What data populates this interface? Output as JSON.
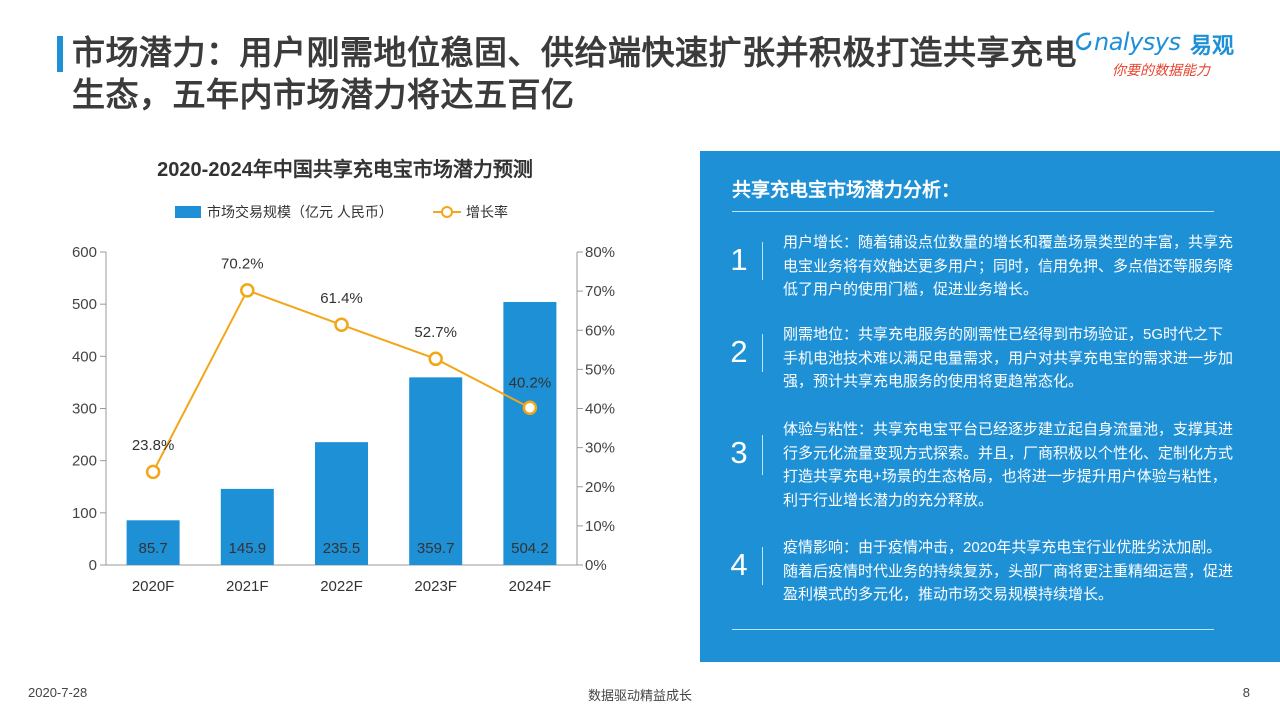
{
  "slide": {
    "title": "市场潜力：用户刚需地位稳固、供给端快速扩张并积极打造共享充电生态，五年内市场潜力将达五百亿",
    "logo_en": "nalysys",
    "logo_cn": "易观",
    "logo_slogan": "你要的数据能力",
    "footer_date": "2020-7-28",
    "footer_center": "数据驱动精益成长",
    "page_number": "8"
  },
  "colors": {
    "bar": "#1E90D6",
    "line": "#F2A618",
    "panel_bg": "#1E90D6",
    "title_accent": "#1E90D6"
  },
  "chart_data": {
    "type": "bar",
    "title": "2020-2024年中国共享充电宝市场潜力预测",
    "categories": [
      "2020F",
      "2021F",
      "2022F",
      "2023F",
      "2024F"
    ],
    "series": [
      {
        "name": "市场交易规模（亿元 人民币）",
        "type": "bar",
        "axis": "left",
        "values": [
          85.7,
          145.9,
          235.5,
          359.7,
          504.2
        ],
        "labels": [
          "85.7",
          "145.9",
          "235.5",
          "359.7",
          "504.2"
        ]
      },
      {
        "name": "增长率",
        "type": "line",
        "axis": "right",
        "values": [
          23.8,
          70.2,
          61.4,
          52.7,
          40.2
        ],
        "labels": [
          "23.8%",
          "70.2%",
          "61.4%",
          "52.7%",
          "40.2%"
        ]
      }
    ],
    "y_left": {
      "min": 0,
      "max": 600,
      "ticks": [
        "0",
        "100",
        "200",
        "300",
        "400",
        "500",
        "600"
      ]
    },
    "y_right": {
      "min": 0,
      "max": 80,
      "ticks": [
        "0%",
        "10%",
        "20%",
        "30%",
        "40%",
        "50%",
        "60%",
        "70%",
        "80%"
      ]
    },
    "legend_position": "top",
    "grid": false
  },
  "panel": {
    "title": "共享充电宝市场潜力分析：",
    "items": [
      {
        "num": "1",
        "text": "用户增长：随着铺设点位数量的增长和覆盖场景类型的丰富，共享充电宝业务将有效触达更多用户；同时，信用免押、多点借还等服务降低了用户的使用门槛，促进业务增长。"
      },
      {
        "num": "2",
        "text": "刚需地位：共享充电服务的刚需性已经得到市场验证，5G时代之下手机电池技术难以满足电量需求，用户对共享充电宝的需求进一步加强，预计共享充电服务的使用将更趋常态化。"
      },
      {
        "num": "3",
        "text": "体验与粘性：共享充电宝平台已经逐步建立起自身流量池，支撑其进行多元化流量变现方式探索。并且，厂商积极以个性化、定制化方式打造共享充电+场景的生态格局，也将进一步提升用户体验与粘性，利于行业增长潜力的充分释放。"
      },
      {
        "num": "4",
        "text": "疫情影响：由于疫情冲击，2020年共享充电宝行业优胜劣汰加剧。随着后疫情时代业务的持续复苏，头部厂商将更注重精细运营，促进盈利模式的多元化，推动市场交易规模持续增长。"
      }
    ]
  }
}
